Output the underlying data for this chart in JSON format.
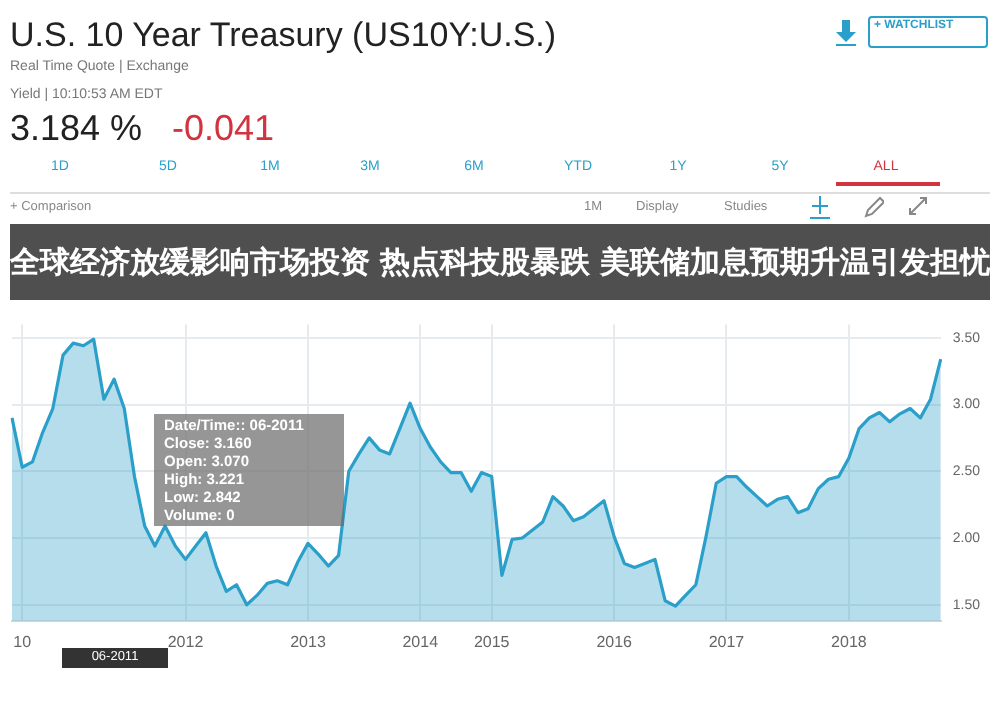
{
  "chart_data": {
    "type": "area",
    "title": "全球经济放缓影响市场投资 热点科技股暴跌 美联储加息预期升温引发担忧",
    "subtitle": "U.S. 10 Year Treasury (US10Y:U.S.)",
    "annotations": [
      "Real Time Quote | Exchange",
      "Yield | 10:10:53 AM EDT",
      "3.184 %",
      "-0.041",
      "+ WATCHLIST",
      "1D",
      "5D",
      "1M",
      "3M",
      "6M",
      "YTD",
      "1Y",
      "5Y",
      "ALL",
      "+ Comparison",
      "1M",
      "Display",
      "Studies",
      "Date/Time:: 06-2011",
      "Close: 3.160",
      "Open: 3.070",
      "High: 3.221",
      "Low: 2.842",
      "Volume: 0",
      "06-2011"
    ],
    "categories": [
      null,
      "10",
      null,
      null,
      null,
      null,
      null,
      null,
      null,
      null,
      null,
      null,
      null,
      null,
      null,
      null,
      null,
      "2012",
      null,
      null,
      null,
      null,
      null,
      null,
      null,
      null,
      null,
      null,
      null,
      "2013",
      null,
      null,
      null,
      null,
      null,
      null,
      null,
      null,
      null,
      null,
      "2014",
      null,
      null,
      null,
      null,
      null,
      null,
      "2015",
      null,
      null,
      null,
      null,
      null,
      null,
      null,
      null,
      null,
      null,
      null,
      "2016",
      null,
      null,
      null,
      null,
      null,
      null,
      null,
      null,
      null,
      null,
      "2017",
      null,
      null,
      null,
      null,
      null,
      null,
      null,
      null,
      null,
      null,
      null,
      "2018",
      null,
      null,
      null,
      null,
      null,
      null,
      null,
      null,
      null
    ],
    "series": [
      {
        "color": "#2a9fc9",
        "values": [
          2.9,
          2.53,
          2.57,
          2.79,
          2.97,
          3.37,
          3.46,
          3.44,
          3.49,
          3.04,
          3.19,
          2.97,
          2.46,
          2.09,
          1.94,
          2.09,
          1.94,
          1.84,
          1.94,
          2.04,
          1.79,
          1.6,
          1.65,
          1.5,
          1.57,
          1.66,
          1.68,
          1.65,
          1.82,
          1.96,
          1.88,
          1.79,
          1.87,
          2.5,
          2.63,
          2.75,
          2.66,
          2.63,
          2.82,
          3.01,
          2.82,
          2.68,
          2.57,
          2.49,
          2.49,
          2.35,
          2.49,
          2.46,
          1.72,
          1.99,
          2.0,
          2.06,
          2.12,
          2.31,
          2.24,
          2.13,
          2.16,
          2.22,
          2.28,
          2.01,
          1.81,
          1.78,
          1.81,
          1.84,
          1.53,
          1.49,
          1.57,
          1.65,
          2.01,
          2.41,
          2.46,
          2.46,
          2.38,
          2.31,
          2.24,
          2.29,
          2.31,
          2.19,
          2.22,
          2.37,
          2.44,
          2.46,
          2.6,
          2.82,
          2.9,
          2.94,
          2.87,
          2.93,
          2.97,
          2.9,
          3.04,
          3.34
        ]
      }
    ],
    "ylim": [
      1.38,
      3.6
    ],
    "yticks": [
      {
        "value": 1.5,
        "label": "1.50"
      },
      {
        "value": 2,
        "label": "2.00"
      },
      {
        "value": 2.5,
        "label": "2.50"
      },
      {
        "value": 3,
        "label": "3.00"
      },
      {
        "value": 3.5,
        "label": "3.50"
      }
    ],
    "grid": true
  }
}
